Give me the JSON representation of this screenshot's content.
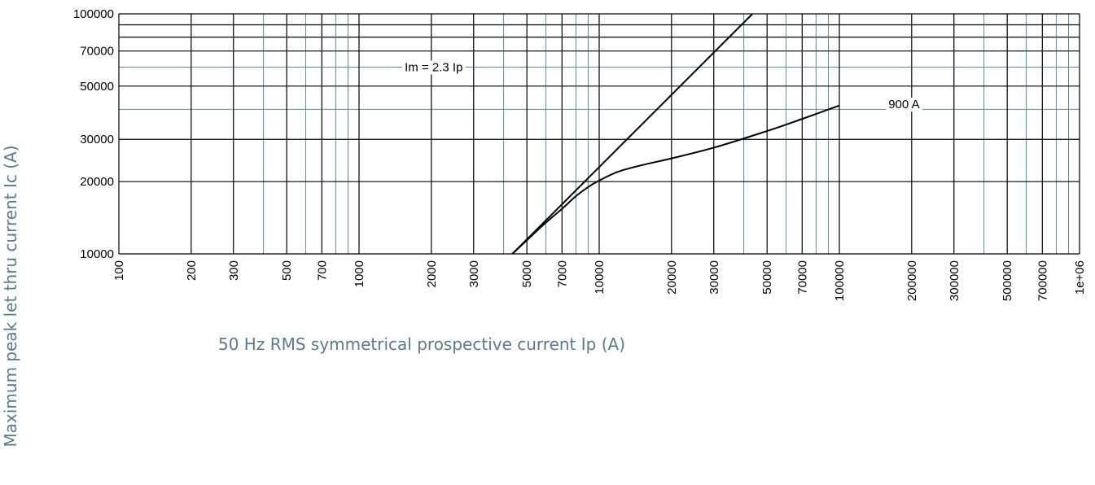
{
  "chart_data": {
    "type": "line",
    "xlabel": "50 Hz RMS symmetrical prospective current Ip (A)",
    "ylabel": "Maximum peak let thru current Ic (A)",
    "x_scale": "log",
    "y_scale": "log",
    "xlim": [
      100,
      1000000
    ],
    "ylim": [
      10000,
      100000
    ],
    "grid": true,
    "x_tick_labels": [
      "100",
      "200",
      "300",
      "500",
      "700",
      "1000",
      "2000",
      "3000",
      "5000",
      "7000",
      "10000",
      "20000",
      "30000",
      "50000",
      "70000",
      "100000",
      "200000",
      "300000",
      "500000",
      "700000",
      "1e+06"
    ],
    "y_tick_labels": [
      "10000",
      "20000",
      "30000",
      "50000",
      "70000",
      "100000"
    ],
    "series": [
      {
        "name": "Im = 2.3 Ip",
        "x": [
          4350,
          43500
        ],
        "y": [
          10000,
          100000
        ]
      },
      {
        "name": "900 A",
        "x": [
          4350,
          5000,
          6000,
          7000,
          8000,
          9000,
          10000,
          12000,
          15000,
          20000,
          30000,
          50000,
          70000,
          100000
        ],
        "y": [
          10000,
          11400,
          13500,
          15400,
          17400,
          19000,
          20200,
          22000,
          23400,
          25000,
          27700,
          32500,
          36500,
          41500
        ]
      }
    ],
    "annotations": [
      {
        "text": "Im = 2.3 Ip",
        "x": 1550,
        "y": 60000
      },
      {
        "text": "900 A",
        "x": 160000,
        "y": 42000
      }
    ],
    "colors": {
      "line": "#000000",
      "major_grid": "#000000",
      "minor_grid": "#5f8c9c",
      "axis_title": "#5d7a8c"
    }
  }
}
